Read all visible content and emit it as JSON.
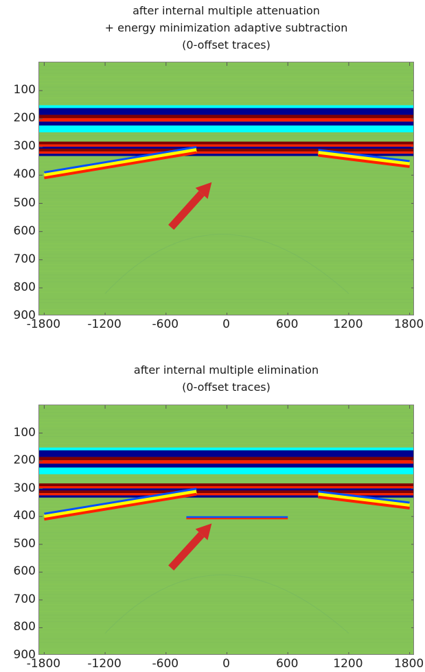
{
  "chart_data": [
    {
      "type": "heatmap",
      "title_lines": [
        "after internal multiple attenuation",
        "+ energy minimization adaptive subtraction",
        "(0-offset traces)"
      ],
      "x_ticks": [
        -1800,
        -1200,
        -600,
        0,
        600,
        1200,
        1800
      ],
      "y_ticks": [
        100,
        200,
        300,
        400,
        500,
        600,
        700,
        800,
        900
      ],
      "xlim": [
        -1850,
        1850
      ],
      "ylim": [
        0,
        900
      ],
      "colormap": [
        "#00008f",
        "#0050ff",
        "#00ffff",
        "#84c357",
        "#ffff00",
        "#ff2000",
        "#800000"
      ],
      "events": [
        {
          "kind": "flat reflector",
          "y": 200
        },
        {
          "kind": "reflector",
          "y": 295
        },
        {
          "kind": "reflector",
          "y": 320
        },
        {
          "kind": "dipping event",
          "x_range": [
            -1800,
            -300
          ],
          "y_range": [
            400,
            310
          ]
        },
        {
          "kind": "dipping event",
          "x_range": [
            900,
            1800
          ],
          "y_range": [
            320,
            360
          ]
        }
      ],
      "annotation": {
        "type": "arrow",
        "color": "#d42a2a",
        "from": [
          -550,
          585
        ],
        "to": [
          -150,
          425
        ]
      },
      "target_event_present": false
    },
    {
      "type": "heatmap",
      "title_lines": [
        "after internal multiple elimination",
        "(0-offset traces)"
      ],
      "x_ticks": [
        -1800,
        -1200,
        -600,
        0,
        600,
        1200,
        1800
      ],
      "y_ticks": [
        100,
        200,
        300,
        400,
        500,
        600,
        700,
        800,
        900
      ],
      "xlim": [
        -1850,
        1850
      ],
      "ylim": [
        0,
        900
      ],
      "colormap": [
        "#00008f",
        "#0050ff",
        "#00ffff",
        "#84c357",
        "#ffff00",
        "#ff2000",
        "#800000"
      ],
      "events": [
        {
          "kind": "flat reflector",
          "y": 200
        },
        {
          "kind": "reflector",
          "y": 295
        },
        {
          "kind": "reflector",
          "y": 320
        },
        {
          "kind": "dipping event",
          "x_range": [
            -1800,
            -300
          ],
          "y_range": [
            400,
            310
          ]
        },
        {
          "kind": "dipping event",
          "x_range": [
            900,
            1800
          ],
          "y_range": [
            320,
            360
          ]
        },
        {
          "kind": "preserved primary",
          "x_range": [
            -400,
            600
          ],
          "y": 405
        }
      ],
      "annotation": {
        "type": "arrow",
        "color": "#d42a2a",
        "from": [
          -550,
          585
        ],
        "to": [
          -150,
          425
        ]
      },
      "target_event_present": true
    }
  ]
}
